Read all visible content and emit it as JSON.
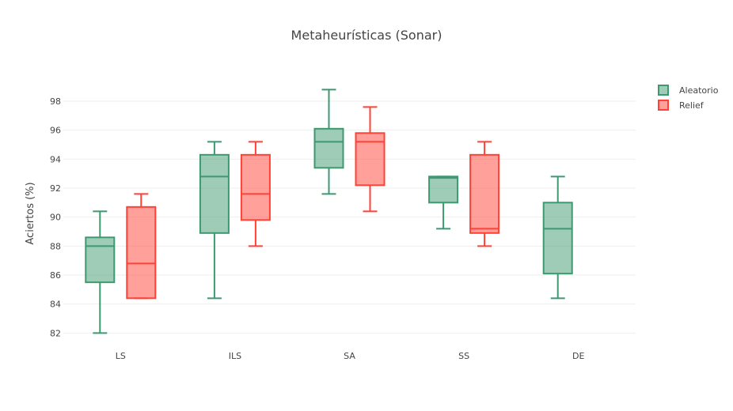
{
  "chart_data": {
    "type": "box",
    "title": "Metaheurísticas (Sonar)",
    "xlabel": "",
    "ylabel": "Aciertos (%)",
    "categories": [
      "LS",
      "ILS",
      "SA",
      "SS",
      "DE"
    ],
    "ylim": [
      81.2,
      99.8
    ],
    "yticks": [
      82,
      84,
      86,
      88,
      90,
      92,
      94,
      96,
      98
    ],
    "grid": true,
    "legend_position": "top-right",
    "series": [
      {
        "name": "Aleatorio",
        "color": "#3d9970",
        "fill": "rgba(61,153,112,0.5)",
        "boxes": [
          {
            "category": "LS",
            "min": 82.0,
            "q1": 85.5,
            "median": 88.0,
            "q3": 88.6,
            "max": 90.4
          },
          {
            "category": "ILS",
            "min": 84.4,
            "q1": 88.9,
            "median": 92.8,
            "q3": 94.3,
            "max": 95.2
          },
          {
            "category": "SA",
            "min": 91.6,
            "q1": 93.4,
            "median": 95.2,
            "q3": 96.1,
            "max": 98.8
          },
          {
            "category": "SS",
            "min": 89.2,
            "q1": 91.0,
            "median": 92.7,
            "q3": 92.8,
            "max": 92.8
          },
          {
            "category": "DE",
            "min": 84.4,
            "q1": 86.1,
            "median": 89.2,
            "q3": 91.0,
            "max": 92.8
          }
        ]
      },
      {
        "name": "Relief",
        "color": "#ff4136",
        "fill": "rgba(255,65,54,0.5)",
        "boxes": [
          {
            "category": "LS",
            "min": 84.4,
            "q1": 84.4,
            "median": 86.8,
            "q3": 90.7,
            "max": 91.6
          },
          {
            "category": "ILS",
            "min": 88.0,
            "q1": 89.8,
            "median": 91.6,
            "q3": 94.3,
            "max": 95.2
          },
          {
            "category": "SA",
            "min": 90.4,
            "q1": 92.2,
            "median": 95.2,
            "q3": 95.8,
            "max": 97.6
          },
          {
            "category": "SS",
            "min": 88.0,
            "q1": 88.9,
            "median": 89.2,
            "q3": 94.3,
            "max": 95.2
          }
        ]
      }
    ]
  }
}
